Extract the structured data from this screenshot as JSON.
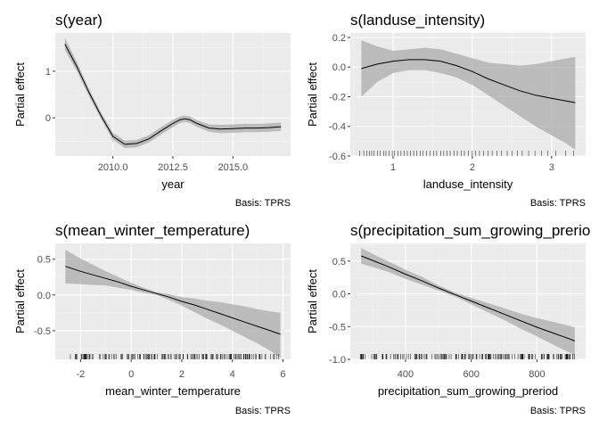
{
  "chart_data": [
    {
      "type": "line",
      "title": "s(year)",
      "xlabel": "year",
      "ylabel": "Partial effect",
      "caption": "Basis: TPRS",
      "xlim": [
        2007.6,
        2017.4
      ],
      "ylim": [
        -0.82,
        1.82
      ],
      "x_ticks": [
        2010.0,
        2012.5,
        2015.0
      ],
      "x_tick_labels": [
        "2010.0",
        "2012.5",
        "2015.0"
      ],
      "y_ticks": [
        1,
        0
      ],
      "y_tick_labels": [
        "1",
        "0"
      ],
      "x": [
        2008.0,
        2008.5,
        2009.0,
        2009.5,
        2010.0,
        2010.5,
        2011.0,
        2011.5,
        2012.0,
        2012.5,
        2012.8,
        2013.0,
        2013.2,
        2013.5,
        2014.0,
        2014.5,
        2015.0,
        2015.5,
        2016.0,
        2016.5,
        2017.0
      ],
      "series": [
        {
          "values": [
            1.58,
            1.1,
            0.55,
            0.05,
            -0.4,
            -0.57,
            -0.55,
            -0.45,
            -0.28,
            -0.12,
            -0.04,
            -0.02,
            -0.04,
            -0.12,
            -0.22,
            -0.24,
            -0.23,
            -0.22,
            -0.22,
            -0.21,
            -0.19
          ],
          "lower": [
            1.45,
            1.0,
            0.47,
            -0.02,
            -0.48,
            -0.65,
            -0.63,
            -0.53,
            -0.36,
            -0.2,
            -0.11,
            -0.09,
            -0.11,
            -0.19,
            -0.3,
            -0.33,
            -0.32,
            -0.31,
            -0.31,
            -0.3,
            -0.28
          ],
          "upper": [
            1.72,
            1.2,
            0.63,
            0.12,
            -0.32,
            -0.49,
            -0.47,
            -0.37,
            -0.2,
            -0.04,
            0.03,
            0.05,
            0.03,
            -0.05,
            -0.14,
            -0.15,
            -0.14,
            -0.13,
            -0.13,
            -0.12,
            -0.1
          ]
        }
      ],
      "rug": []
    },
    {
      "type": "line",
      "title": "s(landuse_intensity)",
      "xlabel": "landuse_intensity",
      "ylabel": "Partial effect",
      "caption": "Basis: TPRS",
      "xlim": [
        0.46,
        3.43
      ],
      "ylim": [
        -0.6,
        0.23
      ],
      "x_ticks": [
        1,
        2,
        3
      ],
      "x_tick_labels": [
        "1",
        "2",
        "3"
      ],
      "y_ticks": [
        0.2,
        0.0,
        -0.2,
        -0.4,
        -0.6
      ],
      "y_tick_labels": [
        "0.2",
        "0.0",
        "-0.2",
        "-0.4",
        "-0.6"
      ],
      "x": [
        0.6,
        0.8,
        1.0,
        1.2,
        1.4,
        1.6,
        1.8,
        2.0,
        2.2,
        2.4,
        2.6,
        2.8,
        3.0,
        3.2,
        3.3
      ],
      "series": [
        {
          "values": [
            -0.01,
            0.02,
            0.04,
            0.05,
            0.05,
            0.04,
            0.01,
            -0.03,
            -0.08,
            -0.12,
            -0.16,
            -0.19,
            -0.21,
            -0.23,
            -0.24
          ],
          "lower": [
            -0.2,
            -0.1,
            -0.04,
            -0.02,
            -0.02,
            -0.04,
            -0.07,
            -0.12,
            -0.19,
            -0.26,
            -0.33,
            -0.4,
            -0.46,
            -0.52,
            -0.56
          ],
          "upper": [
            0.18,
            0.14,
            0.11,
            0.12,
            0.13,
            0.12,
            0.09,
            0.06,
            0.03,
            0.02,
            0.01,
            0.02,
            0.04,
            0.06,
            0.07
          ]
        }
      ],
      "rug": [
        0.58,
        0.63,
        0.67,
        0.7,
        0.73,
        0.76,
        0.8,
        0.84,
        0.88,
        0.91,
        0.95,
        0.99,
        1.02,
        1.06,
        1.1,
        1.14,
        1.18,
        1.22,
        1.26,
        1.3,
        1.34,
        1.38,
        1.42,
        1.47,
        1.51,
        1.55,
        1.6,
        1.64,
        1.68,
        1.72,
        1.77,
        1.81,
        1.86,
        1.9,
        1.95,
        2.0,
        2.04,
        2.09,
        2.14,
        2.2,
        2.25,
        2.31,
        2.37,
        2.44,
        2.5,
        2.57,
        2.63,
        2.71,
        2.79,
        2.87,
        2.95,
        3.05,
        3.18,
        3.28
      ]
    },
    {
      "type": "line",
      "title": "s(mean_winter_temperature)",
      "xlabel": "mean_winter_temperature",
      "ylabel": "Partial effect",
      "caption": "Basis: TPRS",
      "xlim": [
        -3.0,
        6.3
      ],
      "ylim": [
        -0.9,
        0.72
      ],
      "x_ticks": [
        -2,
        0,
        2,
        4,
        6
      ],
      "x_tick_labels": [
        "-2",
        "0",
        "2",
        "4",
        "6"
      ],
      "y_ticks": [
        0.5,
        0.0,
        -0.5
      ],
      "y_tick_labels": [
        "0.5",
        "0.0",
        "-0.5"
      ],
      "x": [
        -2.6,
        -2.0,
        -1.5,
        -1.0,
        -0.5,
        0.0,
        0.5,
        1.0,
        1.5,
        2.0,
        2.5,
        3.0,
        3.5,
        4.0,
        4.5,
        5.0,
        5.5,
        5.9
      ],
      "series": [
        {
          "values": [
            0.4,
            0.33,
            0.28,
            0.23,
            0.18,
            0.12,
            0.07,
            0.02,
            -0.03,
            -0.09,
            -0.14,
            -0.2,
            -0.26,
            -0.32,
            -0.38,
            -0.44,
            -0.5,
            -0.55
          ],
          "lower": [
            0.16,
            0.15,
            0.14,
            0.13,
            0.1,
            0.07,
            0.03,
            0.0,
            -0.07,
            -0.15,
            -0.24,
            -0.33,
            -0.41,
            -0.5,
            -0.59,
            -0.68,
            -0.78,
            -0.88
          ],
          "upper": [
            0.63,
            0.51,
            0.42,
            0.33,
            0.25,
            0.17,
            0.1,
            0.04,
            0.01,
            -0.03,
            -0.05,
            -0.08,
            -0.1,
            -0.13,
            -0.16,
            -0.2,
            -0.23,
            -0.25
          ]
        }
      ],
      "rug": []
    },
    {
      "type": "line",
      "title": "s(precipitation_sum_growing_prerio",
      "xlabel": "precipitation_sum_growing_preriod",
      "ylabel": "Partial effect",
      "caption": "Basis: TPRS",
      "xlim": [
        232,
        948
      ],
      "ylim": [
        -1.0,
        0.77
      ],
      "x_ticks": [
        400,
        600,
        800
      ],
      "x_tick_labels": [
        "400",
        "600",
        "800"
      ],
      "y_ticks": [
        0.5,
        0.0,
        -0.5,
        -1.0
      ],
      "y_tick_labels": [
        "0.5",
        "0.0",
        "-0.5",
        "-1.0"
      ],
      "x": [
        265,
        300,
        350,
        400,
        450,
        500,
        550,
        600,
        650,
        700,
        750,
        800,
        850,
        900,
        915
      ],
      "series": [
        {
          "values": [
            0.58,
            0.51,
            0.41,
            0.3,
            0.2,
            0.09,
            -0.01,
            -0.11,
            -0.21,
            -0.31,
            -0.41,
            -0.51,
            -0.6,
            -0.69,
            -0.72
          ],
          "lower": [
            0.46,
            0.41,
            0.33,
            0.23,
            0.14,
            0.05,
            -0.04,
            -0.16,
            -0.28,
            -0.4,
            -0.53,
            -0.65,
            -0.78,
            -0.9,
            -0.94
          ],
          "upper": [
            0.7,
            0.61,
            0.49,
            0.37,
            0.26,
            0.13,
            0.02,
            -0.06,
            -0.14,
            -0.22,
            -0.3,
            -0.37,
            -0.43,
            -0.49,
            -0.51
          ]
        }
      ],
      "rug": []
    }
  ]
}
